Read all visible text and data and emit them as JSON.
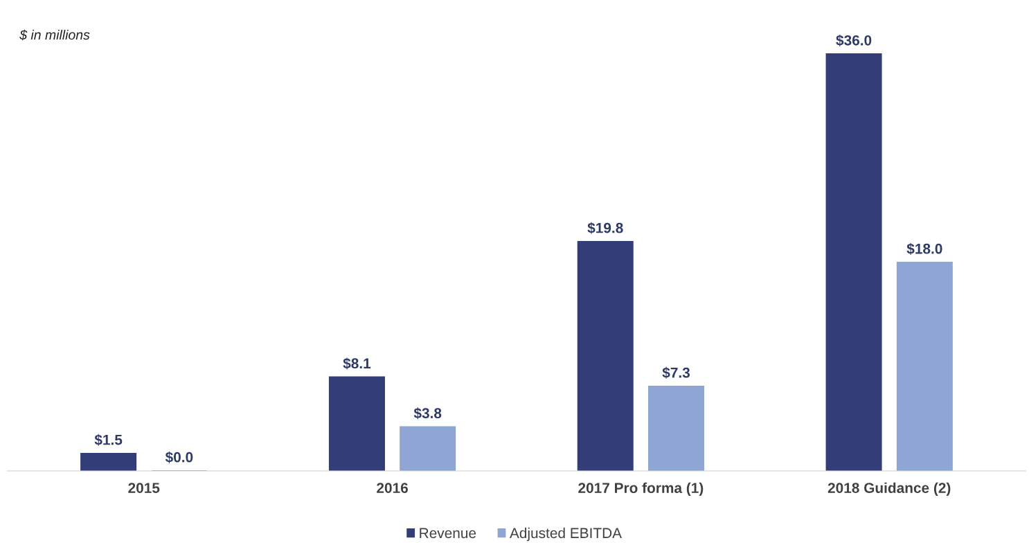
{
  "chart_data": {
    "type": "bar",
    "categories": [
      "2015",
      "2016",
      "2017 Pro forma (1)",
      "2018 Guidance (2)"
    ],
    "series": [
      {
        "name": "Revenue",
        "color": "#333d78",
        "values": [
          1.5,
          8.1,
          19.8,
          36.0
        ],
        "value_labels": [
          "$1.5",
          "$8.1",
          "$19.8",
          "$36.0"
        ]
      },
      {
        "name": "Adjusted EBITDA",
        "color": "#8fa5d4",
        "values": [
          0.0,
          3.8,
          7.3,
          18.0
        ],
        "value_labels": [
          "$0.0",
          "$3.8",
          "$7.3",
          "$18.0"
        ]
      }
    ],
    "annotations": [
      "$ in millions"
    ],
    "legend": "bottom",
    "grid": false,
    "tick_labels": "x"
  }
}
